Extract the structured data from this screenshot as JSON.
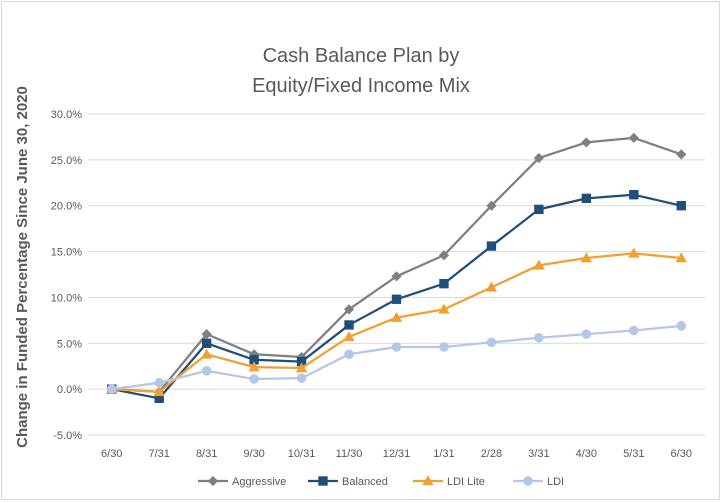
{
  "chart_data": {
    "type": "line",
    "title": [
      "Cash Balance Plan by",
      "Equity/Fixed Income Mix"
    ],
    "xlabel": "",
    "ylabel": "Change in Funded Percentage Since June 30, 2020",
    "categories": [
      "6/30",
      "7/31",
      "8/31",
      "9/30",
      "10/31",
      "11/30",
      "12/31",
      "1/31",
      "2/28",
      "3/31",
      "4/30",
      "5/31",
      "6/30"
    ],
    "ylim": [
      -5.0,
      30.0
    ],
    "yticks": [
      -5.0,
      0.0,
      5.0,
      10.0,
      15.0,
      20.0,
      25.0,
      30.0
    ],
    "ytick_labels": [
      "-5.0%",
      "0.0%",
      "5.0%",
      "10.0%",
      "15.0%",
      "20.0%",
      "25.0%",
      "30.0%"
    ],
    "grid": true,
    "legend_position": "bottom",
    "series": [
      {
        "name": "Aggressive",
        "color": "#7f7f7f",
        "marker": "diamond",
        "values": [
          0.0,
          -0.3,
          6.0,
          3.8,
          3.5,
          8.7,
          12.3,
          14.6,
          20.0,
          25.2,
          26.9,
          27.4,
          25.6
        ]
      },
      {
        "name": "Balanced",
        "color": "#1f4e79",
        "marker": "square",
        "values": [
          0.0,
          -1.0,
          5.0,
          3.2,
          3.0,
          7.0,
          9.8,
          11.5,
          15.6,
          19.6,
          20.8,
          21.2,
          20.0
        ]
      },
      {
        "name": "LDI Lite",
        "color": "#f0a030",
        "marker": "triangle",
        "values": [
          0.0,
          -0.3,
          3.8,
          2.4,
          2.3,
          5.7,
          7.8,
          8.7,
          11.1,
          13.5,
          14.3,
          14.8,
          14.3
        ]
      },
      {
        "name": "LDI",
        "color": "#b4c7e7",
        "marker": "circle",
        "values": [
          0.0,
          0.7,
          2.0,
          1.1,
          1.2,
          3.8,
          4.6,
          4.6,
          5.1,
          5.6,
          6.0,
          6.4,
          6.9
        ]
      }
    ]
  }
}
